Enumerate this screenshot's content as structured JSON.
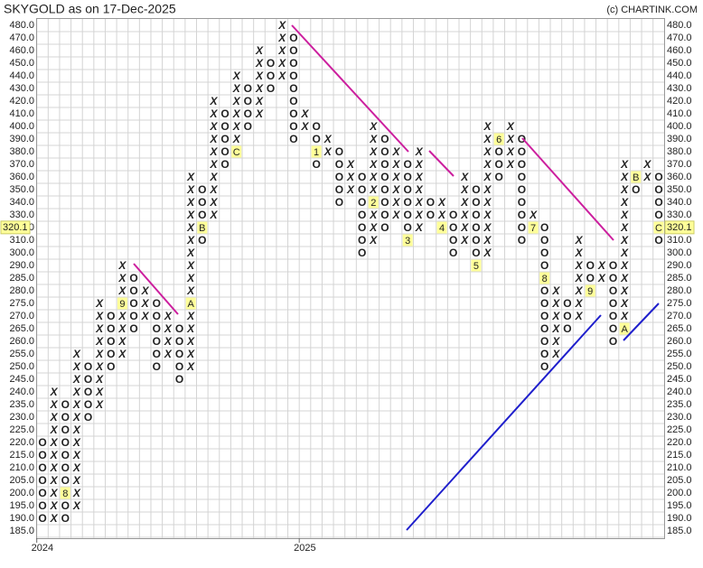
{
  "chart_data": {
    "type": "point_and_figure",
    "title": "SKYGOLD as on 17-Dec-2025",
    "credit": "(c) CHARTINK.COM",
    "grid": true,
    "x_color": "#2e8b2e",
    "o_color": "#e8312a",
    "last_price": 320.1,
    "yticks": [
      {
        "value": 480,
        "label": "480.0"
      },
      {
        "value": 470,
        "label": "470.0"
      },
      {
        "value": 460,
        "label": "460.0"
      },
      {
        "value": 450,
        "label": "450.0"
      },
      {
        "value": 440,
        "label": "440.0"
      },
      {
        "value": 430,
        "label": "430.0"
      },
      {
        "value": 420,
        "label": "420.0"
      },
      {
        "value": 410,
        "label": "410.0"
      },
      {
        "value": 400,
        "label": "400.0"
      },
      {
        "value": 390,
        "label": "390.0"
      },
      {
        "value": 380,
        "label": "380.0"
      },
      {
        "value": 370,
        "label": "370.0"
      },
      {
        "value": 360,
        "label": "360.0"
      },
      {
        "value": 350,
        "label": "350.0"
      },
      {
        "value": 340,
        "label": "340.0"
      },
      {
        "value": 330,
        "label": "330.0"
      },
      {
        "value": 320,
        "label": "320.0"
      },
      {
        "value": 310,
        "label": "310.0"
      },
      {
        "value": 300,
        "label": "300.0"
      },
      {
        "value": 290,
        "label": "290.0"
      },
      {
        "value": 285,
        "label": "285.0"
      },
      {
        "value": 280,
        "label": "280.0"
      },
      {
        "value": 275,
        "label": "275.0"
      },
      {
        "value": 270,
        "label": "270.0"
      },
      {
        "value": 265,
        "label": "265.0"
      },
      {
        "value": 260,
        "label": "260.0"
      },
      {
        "value": 255,
        "label": "255.0"
      },
      {
        "value": 250,
        "label": "250.0"
      },
      {
        "value": 245,
        "label": "245.0"
      },
      {
        "value": 240,
        "label": "240.0"
      },
      {
        "value": 235,
        "label": "235.0"
      },
      {
        "value": 230,
        "label": "230.0"
      },
      {
        "value": 225,
        "label": "225.0"
      },
      {
        "value": 220,
        "label": "220.0"
      },
      {
        "value": 215,
        "label": "215.0"
      },
      {
        "value": 210,
        "label": "210.0"
      },
      {
        "value": 205,
        "label": "205.0"
      },
      {
        "value": 200,
        "label": "200.0"
      },
      {
        "value": 195,
        "label": "195.0"
      },
      {
        "value": 190,
        "label": "190.0"
      },
      {
        "value": 185,
        "label": "185.0"
      }
    ],
    "columns": [
      {
        "type": "O",
        "high": 220,
        "low": 190,
        "year": "2024"
      },
      {
        "type": "X",
        "high": 240,
        "low": 190
      },
      {
        "type": "O",
        "high": 235,
        "low": 190,
        "marks": [
          {
            "price": 200,
            "label": "8"
          }
        ]
      },
      {
        "type": "X",
        "high": 255,
        "low": 195
      },
      {
        "type": "O",
        "high": 250,
        "low": 230
      },
      {
        "type": "X",
        "high": 275,
        "low": 235
      },
      {
        "type": "O",
        "high": 270,
        "low": 250
      },
      {
        "type": "X",
        "high": 290,
        "low": 255,
        "marks": [
          {
            "price": 275,
            "label": "9"
          }
        ]
      },
      {
        "type": "O",
        "high": 285,
        "low": 265
      },
      {
        "type": "X",
        "high": 280,
        "low": 270
      },
      {
        "type": "O",
        "high": 275,
        "low": 250
      },
      {
        "type": "X",
        "high": 270,
        "low": 255
      },
      {
        "type": "O",
        "high": 265,
        "low": 245
      },
      {
        "type": "X",
        "high": 360,
        "low": 250,
        "marks": [
          {
            "price": 275,
            "label": "A"
          }
        ]
      },
      {
        "type": "O",
        "high": 350,
        "low": 310,
        "marks": [
          {
            "price": 320,
            "label": "B"
          }
        ]
      },
      {
        "type": "X",
        "high": 420,
        "low": 330
      },
      {
        "type": "O",
        "high": 410,
        "low": 370
      },
      {
        "type": "X",
        "high": 440,
        "low": 380,
        "marks": [
          {
            "price": 380,
            "label": "C"
          }
        ]
      },
      {
        "type": "O",
        "high": 430,
        "low": 400
      },
      {
        "type": "X",
        "high": 460,
        "low": 410
      },
      {
        "type": "O",
        "high": 450,
        "low": 430
      },
      {
        "type": "X",
        "high": 480,
        "low": 440
      },
      {
        "type": "O",
        "high": 470,
        "low": 390
      },
      {
        "type": "X",
        "high": 410,
        "low": 400,
        "year": "2025"
      },
      {
        "type": "O",
        "high": 400,
        "low": 370,
        "marks": [
          {
            "price": 380,
            "label": "1"
          }
        ]
      },
      {
        "type": "X",
        "high": 390,
        "low": 380
      },
      {
        "type": "O",
        "high": 380,
        "low": 340
      },
      {
        "type": "X",
        "high": 370,
        "low": 350
      },
      {
        "type": "O",
        "high": 360,
        "low": 300
      },
      {
        "type": "X",
        "high": 400,
        "low": 310,
        "marks": [
          {
            "price": 340,
            "label": "2"
          }
        ]
      },
      {
        "type": "O",
        "high": 390,
        "low": 320
      },
      {
        "type": "X",
        "high": 380,
        "low": 330
      },
      {
        "type": "O",
        "high": 370,
        "low": 310,
        "marks": [
          {
            "price": 310,
            "label": "3"
          }
        ]
      },
      {
        "type": "X",
        "high": 380,
        "low": 320
      },
      {
        "type": "O",
        "high": 340,
        "low": 330
      },
      {
        "type": "X",
        "high": 340,
        "low": 320,
        "marks": [
          {
            "price": 320,
            "label": "4"
          }
        ]
      },
      {
        "type": "O",
        "high": 330,
        "low": 300
      },
      {
        "type": "X",
        "high": 360,
        "low": 310
      },
      {
        "type": "O",
        "high": 350,
        "low": 290,
        "marks": [
          {
            "price": 290,
            "label": "5"
          }
        ]
      },
      {
        "type": "X",
        "high": 400,
        "low": 300
      },
      {
        "type": "O",
        "high": 390,
        "low": 360,
        "marks": [
          {
            "price": 390,
            "label": "6"
          }
        ]
      },
      {
        "type": "X",
        "high": 400,
        "low": 370
      },
      {
        "type": "O",
        "high": 390,
        "low": 310
      },
      {
        "type": "X",
        "high": 330,
        "low": 320,
        "marks": [
          {
            "price": 320,
            "label": "7"
          }
        ]
      },
      {
        "type": "O",
        "high": 320,
        "low": 250,
        "marks": [
          {
            "price": 285,
            "label": "8"
          }
        ]
      },
      {
        "type": "X",
        "high": 280,
        "low": 255
      },
      {
        "type": "O",
        "high": 275,
        "low": 265
      },
      {
        "type": "X",
        "high": 310,
        "low": 270
      },
      {
        "type": "O",
        "high": 290,
        "low": 280,
        "marks": [
          {
            "price": 280,
            "label": "9"
          }
        ]
      },
      {
        "type": "X",
        "high": 290,
        "low": 285
      },
      {
        "type": "O",
        "high": 290,
        "low": 260
      },
      {
        "type": "X",
        "high": 370,
        "low": 265,
        "marks": [
          {
            "price": 265,
            "label": "A"
          }
        ]
      },
      {
        "type": "O",
        "high": 360,
        "low": 350,
        "marks": [
          {
            "price": 360,
            "label": "B"
          }
        ]
      },
      {
        "type": "X",
        "high": 370,
        "low": 360
      },
      {
        "type": "O",
        "high": 360,
        "low": 310,
        "marks": [
          {
            "price": 320,
            "label": "C"
          }
        ]
      }
    ]
  }
}
